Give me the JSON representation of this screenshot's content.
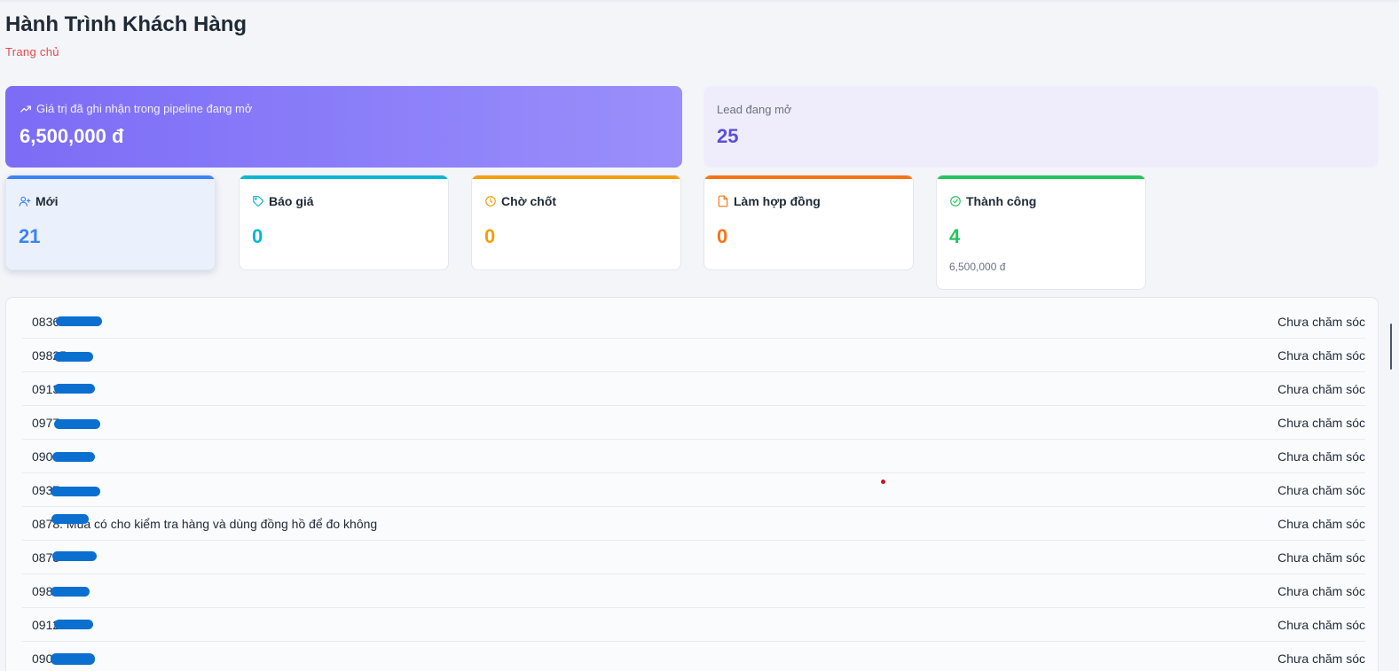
{
  "page": {
    "title": "Hành Trình Khách Hàng",
    "breadcrumb": "Trang chủ"
  },
  "kpis": {
    "pipeline": {
      "label": "Giá trị đã ghi nhận trong pipeline đang mở",
      "value": "6,500,000 đ",
      "icon": "trending-up-icon"
    },
    "open_leads": {
      "label": "Lead đang mở",
      "value": "25"
    }
  },
  "stages": [
    {
      "key": "moi",
      "label": "Mới",
      "count": "21",
      "color": "#3b82f6",
      "icon": "user-plus-icon",
      "sub": ""
    },
    {
      "key": "bao-gia",
      "label": "Báo giá",
      "count": "0",
      "color": "#06b6d4",
      "icon": "tag-icon",
      "sub": ""
    },
    {
      "key": "cho-chot",
      "label": "Chờ chốt",
      "count": "0",
      "color": "#f59e0b",
      "icon": "clock-icon",
      "sub": ""
    },
    {
      "key": "lam-hop-dong",
      "label": "Làm hợp đồng",
      "count": "0",
      "color": "#f97316",
      "icon": "file-icon",
      "sub": ""
    },
    {
      "key": "thanh-cong",
      "label": "Thành công",
      "count": "4",
      "color": "#22c55e",
      "icon": "check-circle-icon",
      "sub": "6,500,000 đ"
    }
  ],
  "leads": [
    {
      "phone": "0836",
      "status": "Chưa chăm sóc"
    },
    {
      "phone": "09825",
      "status": "Chưa chăm sóc"
    },
    {
      "phone": "0913",
      "status": "Chưa chăm sóc"
    },
    {
      "phone": "0977",
      "status": "Chưa chăm sóc"
    },
    {
      "phone": "0904",
      "status": "Chưa chăm sóc"
    },
    {
      "phone": "0937",
      "status": "Chưa chăm sóc"
    },
    {
      "phone": "0878",
      "note": ". Mua có cho kiểm tra hàng và dùng đồng hồ để đo không",
      "status": "Chưa chăm sóc"
    },
    {
      "phone": "0878",
      "status": "Chưa chăm sóc"
    },
    {
      "phone": "0988",
      "status": "Chưa chăm sóc"
    },
    {
      "phone": "0912",
      "status": "Chưa chăm sóc"
    },
    {
      "phone": "0903",
      "status": "Chưa chăm sóc"
    }
  ]
}
